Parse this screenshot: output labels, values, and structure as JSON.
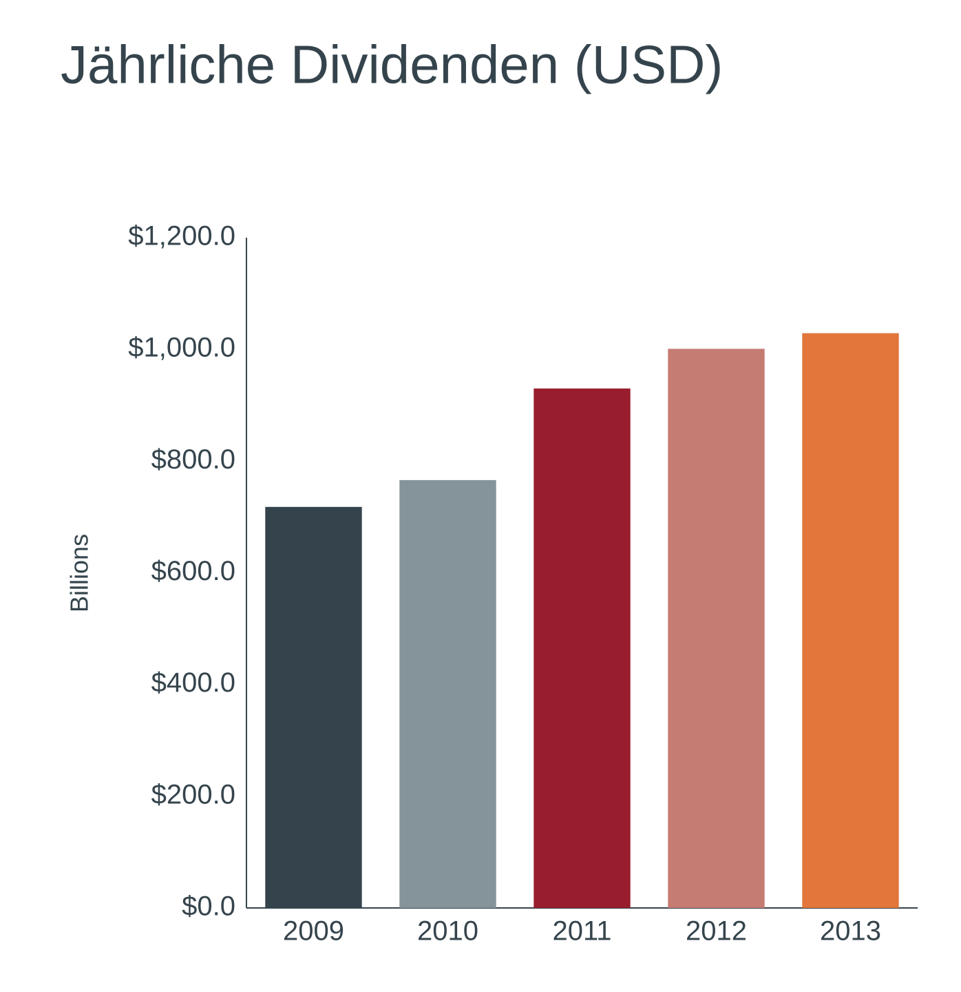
{
  "chart_data": {
    "type": "bar",
    "title": "Jährliche Dividenden (USD)",
    "y_label": "Billions",
    "categories": [
      "2009",
      "2010",
      "2011",
      "2012",
      "2013"
    ],
    "values": [
      718,
      766,
      930,
      1001,
      1029
    ],
    "colors": [
      "#35444c",
      "#85939a",
      "#981e2f",
      "#c57c73",
      "#e2763b"
    ],
    "ylim": [
      0,
      1200
    ],
    "yticks": [
      {
        "value": 0,
        "label": "$0.0"
      },
      {
        "value": 200,
        "label": "$200.0"
      },
      {
        "value": 400,
        "label": "$400.0"
      },
      {
        "value": 600,
        "label": "$600.0"
      },
      {
        "value": 800,
        "label": "$800.0"
      },
      {
        "value": 1000,
        "label": "$1,000.0"
      },
      {
        "value": 1200,
        "label": "$1,200.0"
      }
    ],
    "grid": false
  }
}
